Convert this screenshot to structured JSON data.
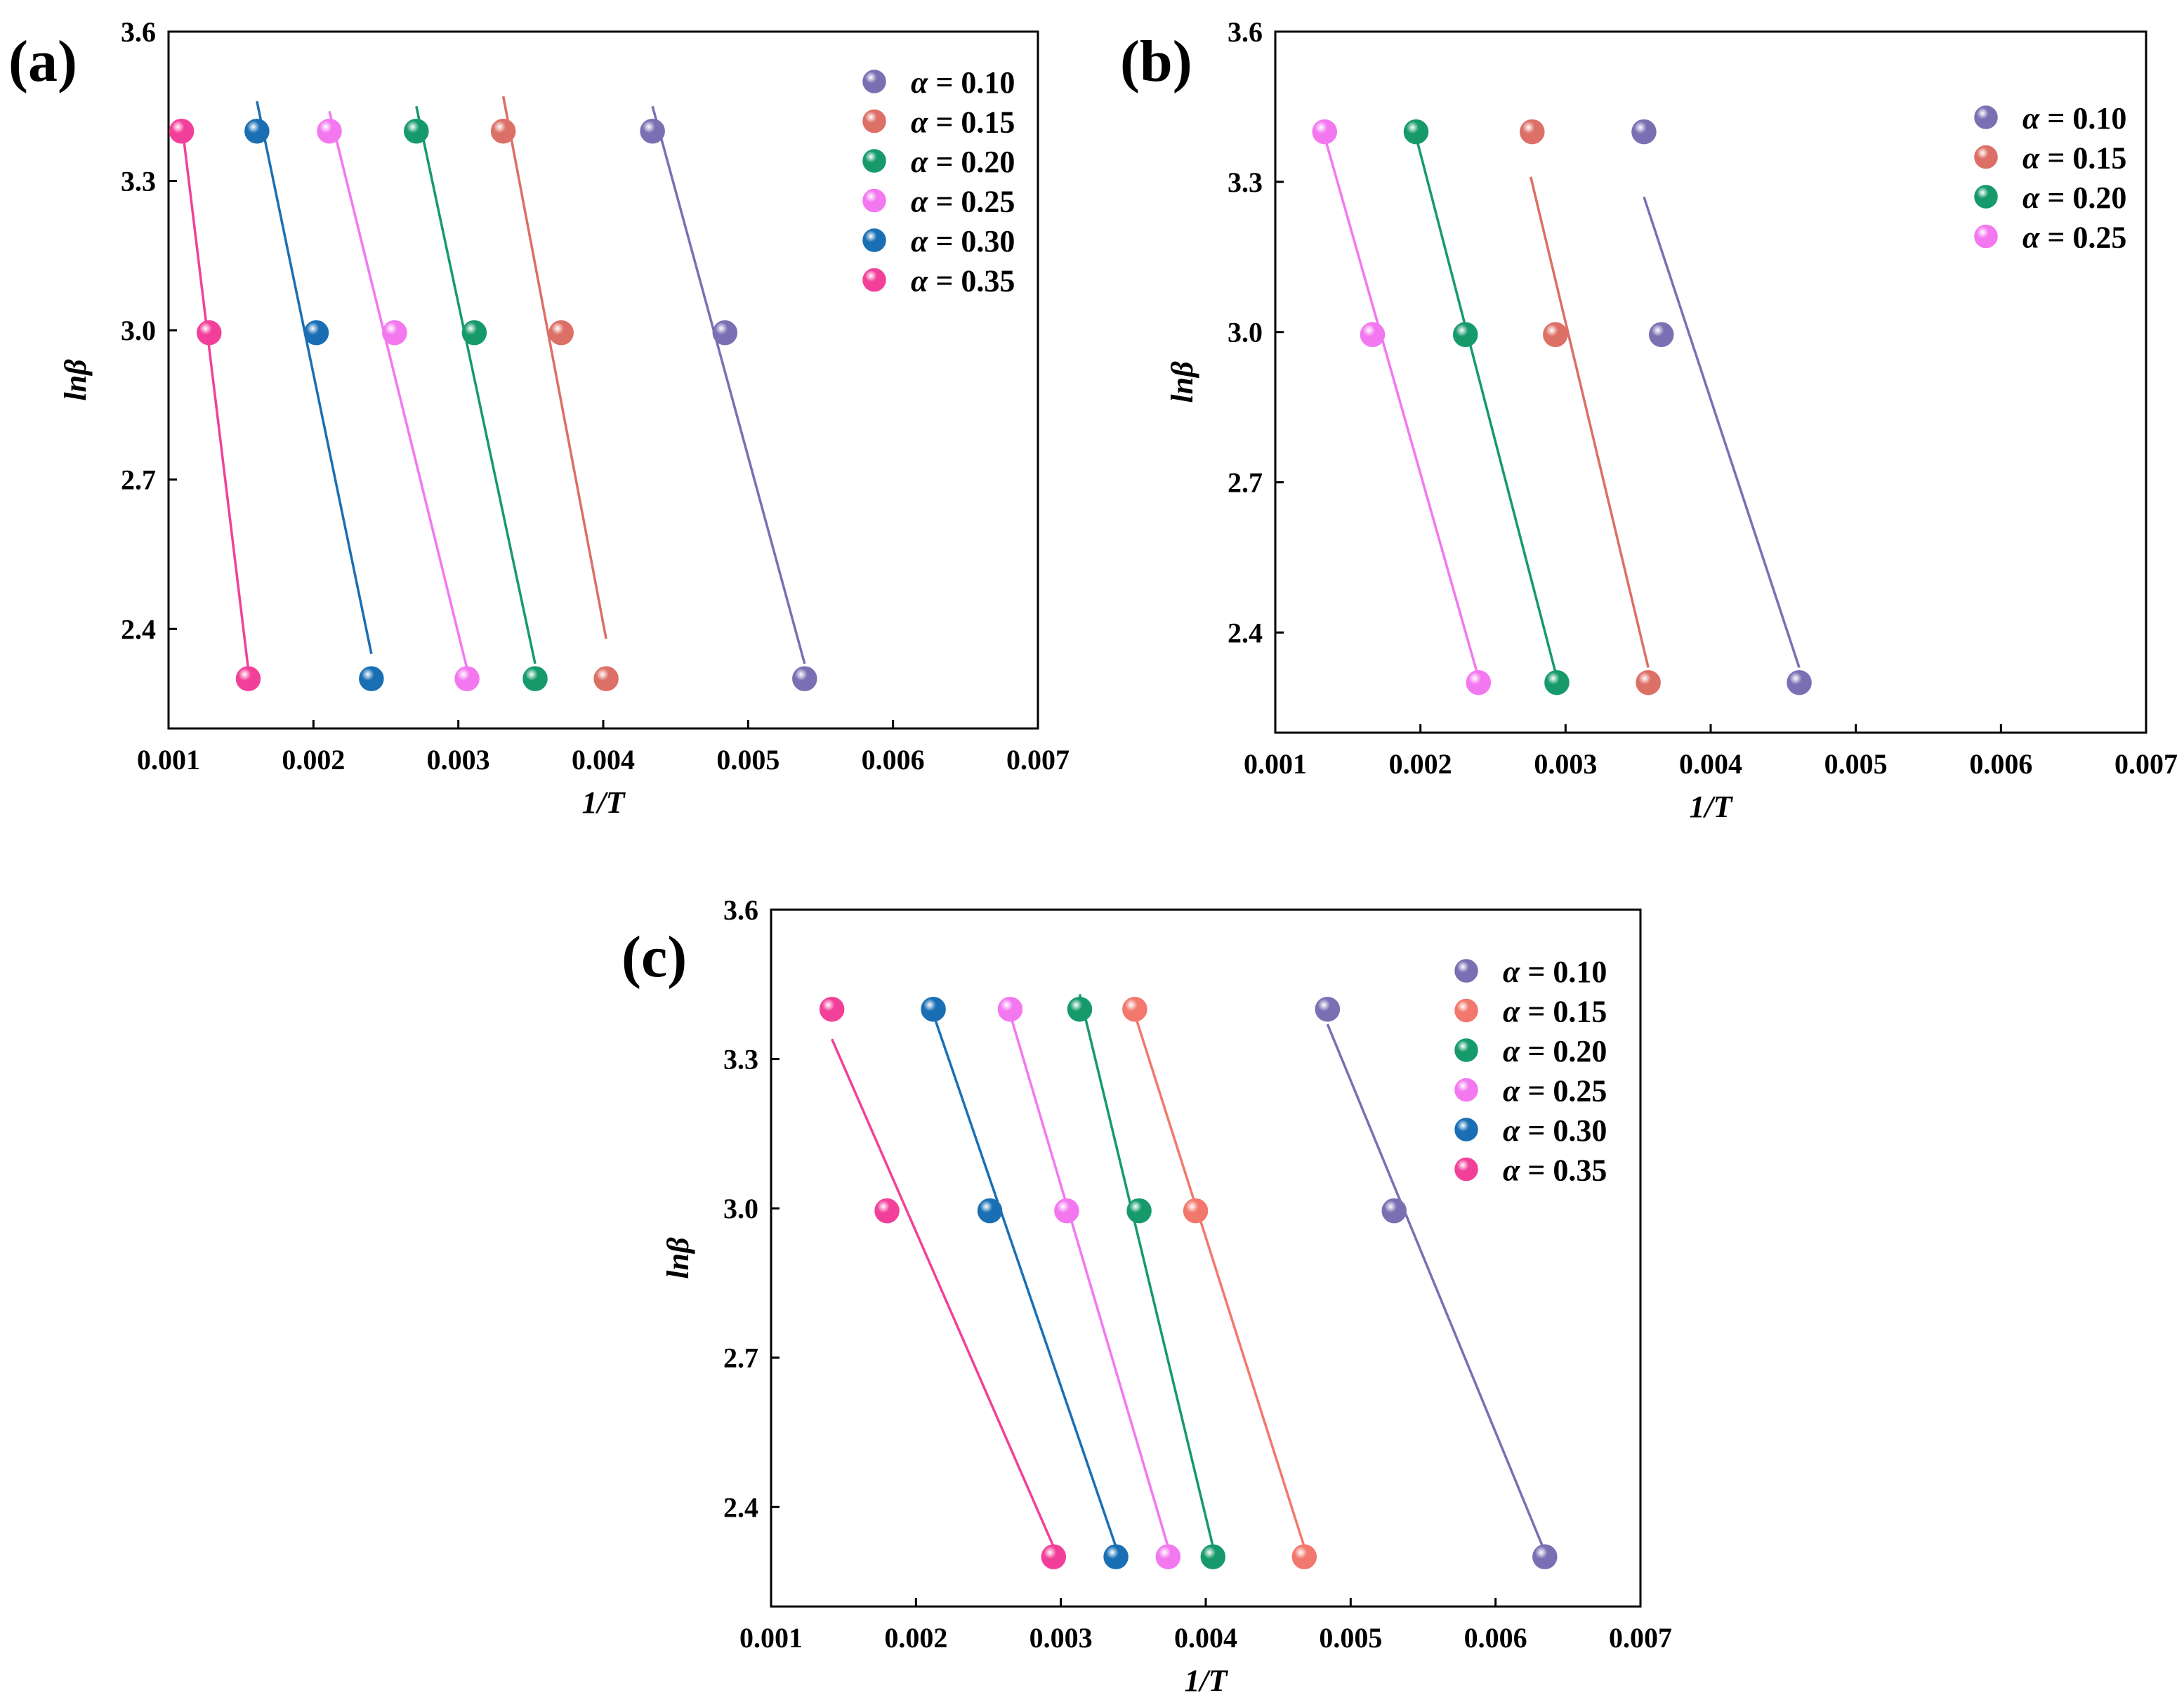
{
  "chart_data": [
    {
      "panel": "(a)",
      "type": "scatter",
      "xlabel": "1/T",
      "ylabel": "lnβ",
      "xlim": [
        0.001,
        0.007
      ],
      "ylim": [
        2.2,
        3.6
      ],
      "xticks": [
        "0.001",
        "0.002",
        "0.003",
        "0.004",
        "0.005",
        "0.006",
        "0.007"
      ],
      "yticks": [
        "2.4",
        "2.7",
        "3.0",
        "3.3",
        "3.6"
      ],
      "legend_position": "top-right",
      "series": [
        {
          "name": "α = 0.10",
          "color": "#7b6fb3",
          "points": [
            [
              0.00434,
              3.4
            ],
            [
              0.00484,
              2.995
            ],
            [
              0.00539,
              2.3
            ]
          ],
          "fit": [
            [
              0.00434,
              3.45
            ],
            [
              0.00539,
              2.33
            ]
          ]
        },
        {
          "name": "α = 0.15",
          "color": "#dc6f66",
          "points": [
            [
              0.00331,
              3.4
            ],
            [
              0.00371,
              2.995
            ],
            [
              0.00402,
              2.3
            ]
          ],
          "fit": [
            [
              0.00331,
              3.47
            ],
            [
              0.00402,
              2.38
            ]
          ]
        },
        {
          "name": "α = 0.20",
          "color": "#169a6b",
          "points": [
            [
              0.00271,
              3.4
            ],
            [
              0.00311,
              2.995
            ],
            [
              0.00353,
              2.3
            ]
          ],
          "fit": [
            [
              0.00271,
              3.45
            ],
            [
              0.00353,
              2.33
            ]
          ]
        },
        {
          "name": "α = 0.25",
          "color": "#f378f0",
          "points": [
            [
              0.00211,
              3.4
            ],
            [
              0.00256,
              2.995
            ],
            [
              0.00306,
              2.3
            ]
          ],
          "fit": [
            [
              0.00211,
              3.44
            ],
            [
              0.00306,
              2.32
            ]
          ]
        },
        {
          "name": "α = 0.30",
          "color": "#1a6fb4",
          "points": [
            [
              0.00161,
              3.4
            ],
            [
              0.00202,
              2.995
            ],
            [
              0.0024,
              2.3
            ]
          ],
          "fit": [
            [
              0.00161,
              3.46
            ],
            [
              0.0024,
              2.35
            ]
          ]
        },
        {
          "name": "α = 0.35",
          "color": "#f2409a",
          "points": [
            [
              0.00109,
              3.4
            ],
            [
              0.00128,
              2.995
            ],
            [
              0.00155,
              2.3
            ]
          ],
          "fit": [
            [
              0.00109,
              3.42
            ],
            [
              0.00155,
              2.32
            ]
          ]
        }
      ]
    },
    {
      "panel": "(b)",
      "type": "scatter",
      "xlabel": "1/T",
      "ylabel": "lnβ",
      "xlim": [
        0.001,
        0.007
      ],
      "ylim": [
        2.2,
        3.6
      ],
      "xticks": [
        "0.001",
        "0.002",
        "0.003",
        "0.004",
        "0.005",
        "0.006",
        "0.007"
      ],
      "yticks": [
        "2.4",
        "2.7",
        "3.0",
        "3.3",
        "3.6"
      ],
      "legend_position": "top-right",
      "series": [
        {
          "name": "α = 0.10",
          "color": "#7b6fb3",
          "points": [
            [
              0.00354,
              3.4
            ],
            [
              0.00366,
              2.995
            ],
            [
              0.00461,
              2.3
            ]
          ],
          "fit": [
            [
              0.00354,
              3.27
            ],
            [
              0.00461,
              2.33
            ]
          ]
        },
        {
          "name": "α = 0.15",
          "color": "#dc6f66",
          "points": [
            [
              0.00277,
              3.4
            ],
            [
              0.00293,
              2.995
            ],
            [
              0.00357,
              2.3
            ]
          ],
          "fit": [
            [
              0.00276,
              3.31
            ],
            [
              0.00357,
              2.33
            ]
          ]
        },
        {
          "name": "α = 0.20",
          "color": "#169a6b",
          "points": [
            [
              0.00197,
              3.4
            ],
            [
              0.00231,
              2.995
            ],
            [
              0.00294,
              2.3
            ]
          ],
          "fit": [
            [
              0.00197,
              3.39
            ],
            [
              0.00294,
              2.31
            ]
          ]
        },
        {
          "name": "α = 0.25",
          "color": "#f378f0",
          "points": [
            [
              0.00134,
              3.4
            ],
            [
              0.00167,
              2.995
            ],
            [
              0.0024,
              2.3
            ]
          ],
          "fit": [
            [
              0.00134,
              3.39
            ],
            [
              0.0024,
              2.31
            ]
          ]
        }
      ]
    },
    {
      "panel": "(c)",
      "type": "scatter",
      "xlabel": "1/T",
      "ylabel": "lnβ",
      "xlim": [
        0.001,
        0.007
      ],
      "ylim": [
        2.2,
        3.6
      ],
      "xticks": [
        "0.001",
        "0.002",
        "0.003",
        "0.004",
        "0.005",
        "0.006",
        "0.007"
      ],
      "yticks": [
        "2.4",
        "2.7",
        "3.0",
        "3.3",
        "3.6"
      ],
      "legend_position": "top-right",
      "series": [
        {
          "name": "α = 0.10",
          "color": "#7b6fb3",
          "points": [
            [
              0.00484,
              3.4
            ],
            [
              0.0053,
              2.995
            ],
            [
              0.00634,
              2.3
            ]
          ],
          "fit": [
            [
              0.00484,
              3.37
            ],
            [
              0.00634,
              2.31
            ]
          ]
        },
        {
          "name": "α = 0.15",
          "color": "#f2786d",
          "points": [
            [
              0.00351,
              3.4
            ],
            [
              0.00393,
              2.995
            ],
            [
              0.00468,
              2.3
            ]
          ],
          "fit": [
            [
              0.00351,
              3.39
            ],
            [
              0.00468,
              2.32
            ]
          ]
        },
        {
          "name": "α = 0.20",
          "color": "#169a6b",
          "points": [
            [
              0.00313,
              3.4
            ],
            [
              0.00354,
              2.995
            ],
            [
              0.00405,
              2.3
            ]
          ],
          "fit": [
            [
              0.00313,
              3.43
            ],
            [
              0.00405,
              2.32
            ]
          ]
        },
        {
          "name": "α = 0.25",
          "color": "#f378f0",
          "points": [
            [
              0.00265,
              3.4
            ],
            [
              0.00304,
              2.995
            ],
            [
              0.00374,
              2.3
            ]
          ],
          "fit": [
            [
              0.00265,
              3.39
            ],
            [
              0.00374,
              2.32
            ]
          ]
        },
        {
          "name": "α = 0.30",
          "color": "#1a6fb4",
          "points": [
            [
              0.00212,
              3.4
            ],
            [
              0.00251,
              2.995
            ],
            [
              0.00338,
              2.3
            ]
          ],
          "fit": [
            [
              0.00212,
              3.39
            ],
            [
              0.00338,
              2.32
            ]
          ]
        },
        {
          "name": "α = 0.35",
          "color": "#f2409a",
          "points": [
            [
              0.00142,
              3.4
            ],
            [
              0.0018,
              2.995
            ],
            [
              0.00295,
              2.3
            ]
          ],
          "fit": [
            [
              0.00142,
              3.34
            ],
            [
              0.00295,
              2.32
            ]
          ]
        }
      ]
    }
  ]
}
